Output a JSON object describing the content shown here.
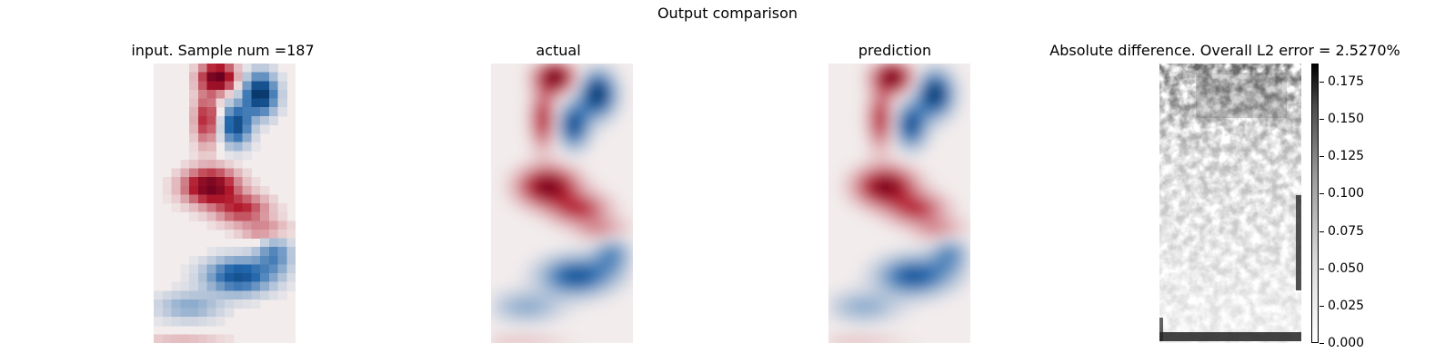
{
  "figure": {
    "suptitle": "Output comparison"
  },
  "panels": [
    {
      "id": "input",
      "title": "input. Sample num =187"
    },
    {
      "id": "actual",
      "title": "actual"
    },
    {
      "id": "prediction",
      "title": "prediction"
    },
    {
      "id": "difference",
      "title": "Absolute difference. Overall L2 error = 2.5270%"
    }
  ],
  "colors": {
    "positive": "#67001f",
    "negative": "#053061",
    "neutral": "#f2ecec",
    "difference_high": "#000000",
    "difference_low": "#ffffff"
  },
  "chart_data": [
    {
      "type": "heatmap",
      "title": "input. Sample num =187",
      "colormap": "diverging red-white-blue",
      "resolution": "coarse",
      "axes": "off"
    },
    {
      "type": "heatmap",
      "title": "actual",
      "colormap": "diverging red-white-blue",
      "axes": "off"
    },
    {
      "type": "heatmap",
      "title": "prediction",
      "colormap": "diverging red-white-blue",
      "axes": "off"
    },
    {
      "type": "heatmap",
      "title": "Absolute difference. Overall L2 error = 2.5270%",
      "colormap": "greys",
      "axes": "off",
      "colorbar": {
        "ticks": [
          "0.000",
          "0.025",
          "0.050",
          "0.075",
          "0.100",
          "0.125",
          "0.150",
          "0.175"
        ],
        "tick_values": [
          0,
          0.025,
          0.05,
          0.075,
          0.1,
          0.125,
          0.15,
          0.175
        ],
        "range": [
          0,
          0.187
        ]
      }
    }
  ]
}
